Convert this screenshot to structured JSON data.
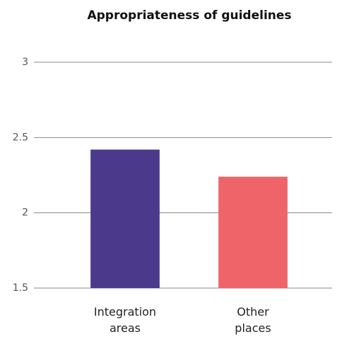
{
  "chart_data": {
    "type": "bar",
    "title": "Appropriateness of guidelines",
    "categories": [
      "Integration areas",
      "Other places"
    ],
    "series": [
      {
        "name": null,
        "colors": [
          "#4b3a8c",
          "#ee6468"
        ],
        "values": [
          2.42,
          2.24
        ]
      }
    ],
    "ylim": [
      1.5,
      3
    ],
    "yticks": [
      1.5,
      2,
      2.5,
      3
    ],
    "grid": true
  }
}
